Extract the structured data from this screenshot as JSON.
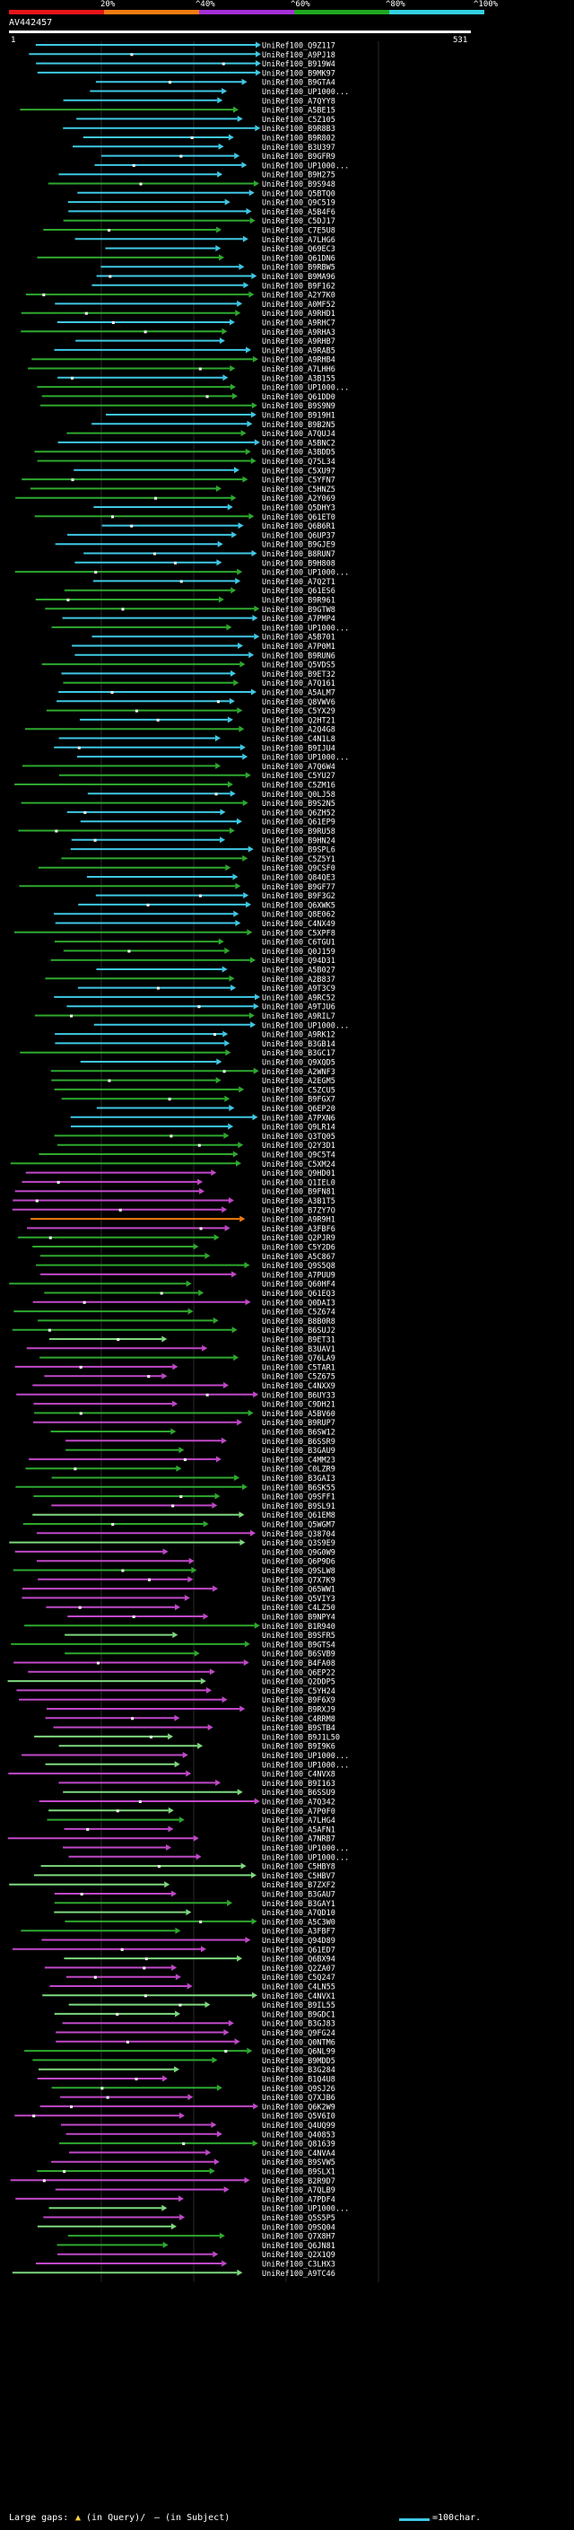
{
  "header": {
    "query_id": "AV442457",
    "scale_start": "1",
    "scale_end": "531",
    "legend": [
      {
        "label": "20%",
        "color": "#e8151a"
      },
      {
        "label": "^40%",
        "color": "#f07c10"
      },
      {
        "label": "^60%",
        "color": "#a530d8"
      },
      {
        "label": "^80%",
        "color": "#1ea81e"
      },
      {
        "label": "^100%",
        "color": "#33d0e0"
      }
    ]
  },
  "colors": {
    "background": "#000000",
    "text": "#ffffff",
    "query_bar": "#ffffff",
    "grid": "#2a2a2a",
    "cyan": "#3fc8e4",
    "green": "#2ea82e",
    "magenta": "#c048c8",
    "light_green": "#7ed87e",
    "orange": "#f07c10"
  },
  "footer": {
    "large_gaps_label": "Large gaps:",
    "in_query_symbol": "▲",
    "in_query_label": "(in Query)/",
    "in_subject_symbol": "—",
    "in_subject_label": "(in Subject)",
    "scale_label": "=100char."
  },
  "hits": [
    "UniRef100_Q9Z117",
    "UniRef100_A9PJ18",
    "UniRef100_B919W4",
    "UniRef100_B9MK97",
    "UniRef100_B9GTA4",
    "UniRef100_UP1000...",
    "UniRef100_A7QYY8",
    "UniRef100_A5BE15",
    "UniRef100_C5Z105",
    "UniRef100_B9R8B3",
    "UniRef100_B9R802",
    "UniRef100_B3U397",
    "UniRef100_B9GFR9",
    "UniRef100_UP1000...",
    "UniRef100_B9H275",
    "UniRef100_B9S948",
    "UniRef100_Q5BTQ0",
    "UniRef100_Q9C519",
    "UniRef100_A5B4F6",
    "UniRef100_C5DJ17",
    "UniRef100_C7E5U8",
    "UniRef100_A7LHG6",
    "UniRef100_Q69EC3",
    "UniRef100_Q61DN6",
    "UniRef100_B9RBW5",
    "UniRef100_B9MA96",
    "UniRef100_B9F162",
    "UniRef100_A2Y7K0",
    "UniRef100_A0MF52",
    "UniRef100_A9RHD1",
    "UniRef100_A9RHC7",
    "UniRef100_A9RHA3",
    "UniRef100_A9RHB7",
    "UniRef100_A9RAB5",
    "UniRef100_A9RHB4",
    "UniRef100_A7LHH6",
    "UniRef100_A3B155",
    "UniRef100_UP1000...",
    "UniRef100_Q61DD0",
    "UniRef100_B9S9N9",
    "UniRef100_B919H1",
    "UniRef100_B9B2N5",
    "UniRef100_A7QUJ4",
    "UniRef100_A5BNC2",
    "UniRef100_A3BDD5",
    "UniRef100_Q75L34",
    "UniRef100_C5XU97",
    "UniRef100_C5YFN7",
    "UniRef100_C5HNZ5",
    "UniRef100_A2Y069",
    "UniRef100_Q5DHY3",
    "UniRef100_Q61ET0",
    "UniRef100_Q6B6R1",
    "UniRef100_Q6UP37",
    "UniRef100_B9GJE9",
    "UniRef100_B8RUN7",
    "UniRef100_B9H808",
    "UniRef100_UP1000...",
    "UniRef100_A7Q2T1",
    "UniRef100_Q61ES6",
    "UniRef100_B9R961",
    "UniRef100_B9GTW8",
    "UniRef100_A7PMP4",
    "UniRef100_UP1000...",
    "UniRef100_A5B701",
    "UniRef100_A7P0M1",
    "UniRef100_B9RUN6",
    "UniRef100_Q5VDS5",
    "UniRef100_B9ET32",
    "UniRef100_A7Q161",
    "UniRef100_A5ALM7",
    "UniRef100_Q8VWV6",
    "UniRef100_C5YX29",
    "UniRef100_Q2HT21",
    "UniRef100_A2Q4G8",
    "UniRef100_C4N1L8",
    "UniRef100_B9IJU4",
    "UniRef100_UP1000...",
    "UniRef100_A7Q6W4",
    "UniRef100_C5YU27",
    "UniRef100_C5ZM16",
    "UniRef100_Q0LJ58",
    "UniRef100_B9S2N5",
    "UniRef100_Q6ZH52",
    "UniRef100_Q61EP9",
    "UniRef100_B9RU58",
    "UniRef100_B9HN24",
    "UniRef100_B9SPL6",
    "UniRef100_C5Z5Y1",
    "UniRef100_Q9CSF0",
    "UniRef100_Q84QE3",
    "UniRef100_B9GF77",
    "UniRef100_B9F3G2",
    "UniRef100_Q6XWK5",
    "UniRef100_Q8E062",
    "UniRef100_C4NX49",
    "UniRef100_C5XPF8",
    "UniRef100_C6TGU1",
    "UniRef100_Q0J159",
    "UniRef100_Q94D31",
    "UniRef100_A5B027",
    "UniRef100_A2B837",
    "UniRef100_A9T3C9",
    "UniRef100_A9RC52",
    "UniRef100_A9TJU6",
    "UniRef100_A9RIL7",
    "UniRef100_UP1000...",
    "UniRef100_A9RK12",
    "UniRef100_B3GB14",
    "UniRef100_B3GC17",
    "UniRef100_Q9XQD5",
    "UniRef100_A2WNF3",
    "UniRef100_A2EGM5",
    "UniRef100_C5ZCU5",
    "UniRef100_B9FGX7",
    "UniRef100_Q6EP20",
    "UniRef100_A7PXN6",
    "UniRef100_Q9LR14",
    "UniRef100_Q3TQ05",
    "UniRef100_Q2Y3D1",
    "UniRef100_Q9C5T4",
    "UniRef100_C5XM24",
    "UniRef100_Q9HD01",
    "UniRef100_Q1IEL0",
    "UniRef100_B9FN81",
    "UniRef100_A3B1T5",
    "UniRef100_B7ZY7O",
    "UniRef100_A9R9H1",
    "UniRef100_A3FBF6",
    "UniRef100_Q2PJR9",
    "UniRef100_C5Y2D6",
    "UniRef100_A5C867",
    "UniRef100_Q9S5Q8",
    "UniRef100_A7PUU9",
    "UniRef100_Q60HF4",
    "UniRef100_Q61EQ3",
    "UniRef100_Q0DAI3",
    "UniRef100_C5Z674",
    "UniRef100_B8B0R8",
    "UniRef100_B6SUJ2",
    "UniRef100_B9ET31",
    "UniRef100_B3UAV1",
    "UniRef100_Q76LA9",
    "UniRef100_C5TAR1",
    "UniRef100_C5Z675",
    "UniRef100_C4NXX9",
    "UniRef100_B6UY33",
    "UniRef100_C9DH21",
    "UniRef100_A5BV60",
    "UniRef100_B9RUP7",
    "UniRef100_B6SW12",
    "UniRef100_B6SSR9",
    "UniRef100_B3GAU9",
    "UniRef100_C4MM23",
    "UniRef100_C0LZR9",
    "UniRef100_B3GAI3",
    "UniRef100_B6SK55",
    "UniRef100_Q9SFF1",
    "UniRef100_B9SL91",
    "UniRef100_Q61EM8",
    "UniRef100_Q5WGM7",
    "UniRef100_Q38704",
    "UniRef100_Q3S9E9",
    "UniRef100_Q9G0W9",
    "UniRef100_Q6P9D6",
    "UniRef100_Q9SLW8",
    "UniRef100_Q7X7K9",
    "UniRef100_Q65WW1",
    "UniRef100_Q5VIY3",
    "UniRef100_C4LZ50",
    "UniRef100_B9NPY4",
    "UniRef100_B1R940",
    "UniRef100_B9SFR5",
    "UniRef100_B9GTS4",
    "UniRef100_B6SVB9",
    "UniRef100_B4FA08",
    "UniRef100_Q6EP22",
    "UniRef100_Q2DDP5",
    "UniRef100_C5YH24",
    "UniRef100_B9F6X9",
    "UniRef100_B9RXJ9",
    "UniRef100_C4RRM8",
    "UniRef100_B9STB4",
    "UniRef100_B9J1L50",
    "UniRef100_B9I9K6",
    "UniRef100_UP1000...",
    "UniRef100_UP1000...",
    "UniRef100_C4NVX8",
    "UniRef100_B9I163",
    "UniRef100_B6SSU9",
    "UniRef100_A7Q342",
    "UniRef100_A7P0F0",
    "UniRef100_A7LHG4",
    "UniRef100_A5AFN1",
    "UniRef100_A7NRB7",
    "UniRef100_UP1000...",
    "UniRef100_UP1000...",
    "UniRef100_C5HBY8",
    "UniRef100_C5HBV7",
    "UniRef100_B7ZXF2",
    "UniRef100_B3GAU7",
    "UniRef100_B3GAY1",
    "UniRef100_A7QD10",
    "UniRef100_A5C3W0",
    "UniRef100_A3FBF7",
    "UniRef100_Q94D89",
    "UniRef100_Q61ED7",
    "UniRef100_Q6BX94",
    "UniRef100_Q2ZA07",
    "UniRef100_C5Q247",
    "UniRef100_C4LN55",
    "UniRef100_C4NVX1",
    "UniRef100_B9IL55",
    "UniRef100_B9GDC1",
    "UniRef100_B3GJ83",
    "UniRef100_Q9FG24",
    "UniRef100_Q0NTM6",
    "UniRef100_Q6NL99",
    "UniRef100_B9MDD5",
    "UniRef100_B3G284",
    "UniRef100_B1Q4U8",
    "UniRef100_Q9SJ26",
    "UniRef100_Q7XJB6",
    "UniRef100_Q6K2W9",
    "UniRef100_Q5V6I0",
    "UniRef100_Q4UQ99",
    "UniRef100_Q40853",
    "UniRef100_Q81639",
    "UniRef100_C4NVA4",
    "UniRef100_B9SVW5",
    "UniRef100_B9SLX1",
    "UniRef100_B2R9D7",
    "UniRef100_A7QLB9",
    "UniRef100_A7PDF4",
    "UniRef100_UP1000...",
    "UniRef100_Q5S5P5",
    "UniRef100_Q9SQ04",
    "UniRef100_Q7X8H7",
    "UniRef100_Q6JN81",
    "UniRef100_Q2X1Q9",
    "UniRef100_C3LHX3",
    "UniRef100_A9TC46"
  ]
}
